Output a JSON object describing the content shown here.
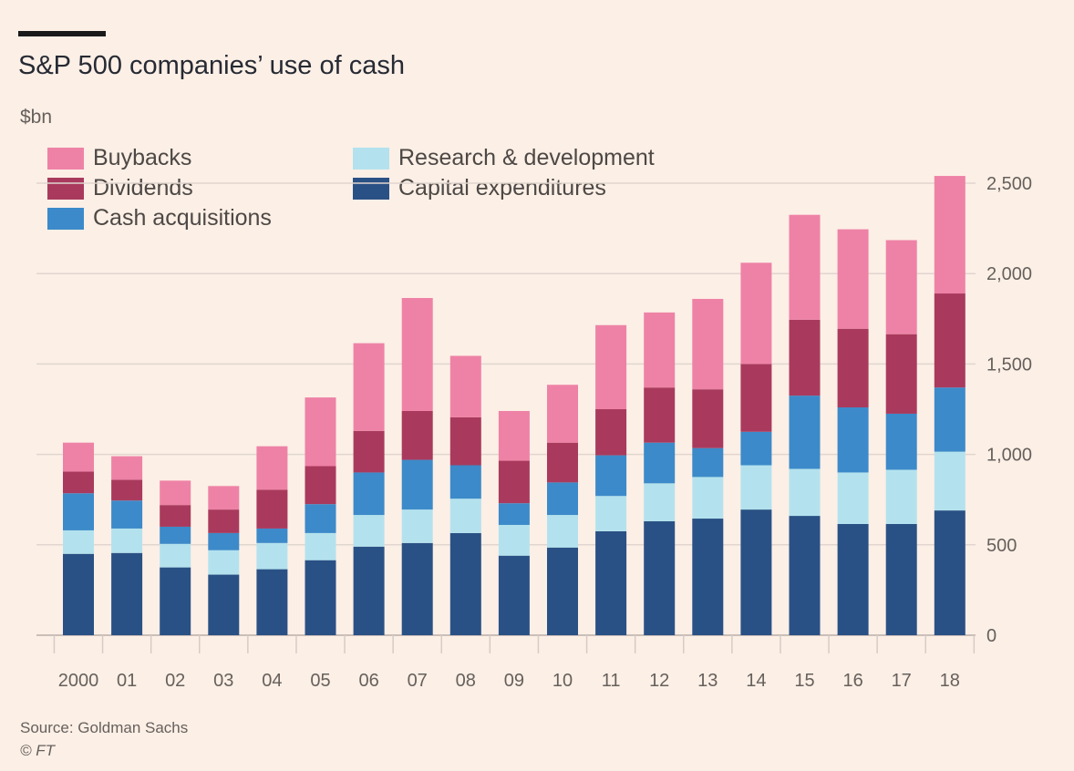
{
  "header": {
    "title": "S&P 500 companies’ use of cash",
    "unit": "$bn"
  },
  "footer": {
    "source": "Source: Goldman Sachs",
    "credit": "© FT"
  },
  "colors": {
    "background": "#fcefe6",
    "gridline": "#e0d6cf",
    "buybacks": "#ee82a6",
    "dividends": "#a93a5d",
    "cash_acquisitions": "#3c8ac9",
    "research_development": "#b3e2ee",
    "capital_expenditures": "#2a5185"
  },
  "legend": [
    {
      "key": "buybacks",
      "label": "Buybacks"
    },
    {
      "key": "dividends",
      "label": "Dividends"
    },
    {
      "key": "cash_acquisitions",
      "label": "Cash acquisitions"
    },
    {
      "key": "research_development",
      "label": "Research & development"
    },
    {
      "key": "capital_expenditures",
      "label": "Capital expenditures"
    }
  ],
  "chart_data": {
    "type": "bar",
    "stacked": true,
    "title": "S&P 500 companies’ use of cash",
    "ylabel": "$bn",
    "ylim": [
      0,
      2500
    ],
    "yticks": [
      0,
      500,
      1000,
      1500,
      2000,
      2500
    ],
    "ytick_labels": [
      "0",
      "500",
      "1,000",
      "1,500",
      "2,000",
      "2,500"
    ],
    "y_axis_position": "right",
    "grid": true,
    "legend_position": "top-left",
    "categories": [
      "2000",
      "01",
      "02",
      "03",
      "04",
      "05",
      "06",
      "07",
      "08",
      "09",
      "10",
      "11",
      "12",
      "13",
      "14",
      "15",
      "16",
      "17",
      "18"
    ],
    "series": [
      {
        "name": "Capital expenditures",
        "key": "capital_expenditures",
        "values": [
          450,
          455,
          375,
          335,
          365,
          415,
          490,
          510,
          565,
          440,
          485,
          575,
          630,
          645,
          695,
          660,
          615,
          615,
          690
        ]
      },
      {
        "name": "Research & development",
        "key": "research_development",
        "values": [
          130,
          135,
          130,
          135,
          145,
          150,
          175,
          185,
          190,
          170,
          180,
          195,
          210,
          230,
          245,
          260,
          285,
          300,
          325
        ]
      },
      {
        "name": "Cash acquisitions",
        "key": "cash_acquisitions",
        "values": [
          205,
          155,
          95,
          95,
          80,
          160,
          235,
          275,
          185,
          120,
          180,
          225,
          225,
          160,
          185,
          405,
          360,
          310,
          355
        ]
      },
      {
        "name": "Dividends",
        "key": "dividends",
        "values": [
          120,
          115,
          120,
          130,
          215,
          210,
          230,
          270,
          265,
          235,
          220,
          255,
          305,
          325,
          375,
          420,
          435,
          440,
          520
        ]
      },
      {
        "name": "Buybacks",
        "key": "buybacks",
        "values": [
          160,
          130,
          135,
          130,
          240,
          380,
          485,
          625,
          340,
          275,
          320,
          465,
          415,
          500,
          560,
          580,
          550,
          520,
          650
        ]
      }
    ]
  }
}
